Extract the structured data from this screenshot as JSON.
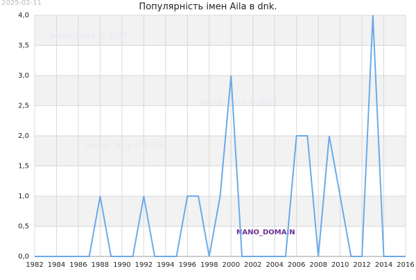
{
  "chart_data": {
    "type": "line",
    "title": "Популярність імен Aila в dnk.",
    "date_stamp": "2025-02-11",
    "watermark": "Імена Світу © 2025",
    "badge": "NANO_DOMAIN",
    "x": [
      1982,
      1983,
      1984,
      1985,
      1986,
      1987,
      1988,
      1989,
      1990,
      1991,
      1992,
      1993,
      1994,
      1995,
      1996,
      1997,
      1998,
      1999,
      2000,
      2001,
      2002,
      2003,
      2004,
      2005,
      2006,
      2007,
      2008,
      2009,
      2010,
      2011,
      2012,
      2013,
      2014,
      2015,
      2016
    ],
    "series": [
      {
        "color": "#6aaae8",
        "values": [
          0,
          0,
          0,
          0,
          0,
          0,
          1,
          0,
          0,
          0,
          1,
          0,
          0,
          0,
          1,
          1,
          0,
          1,
          3,
          0,
          0,
          0,
          0,
          0,
          2,
          2,
          0,
          2,
          1,
          0,
          0,
          4,
          0,
          0,
          0
        ]
      }
    ],
    "xlim": [
      1982,
      2016
    ],
    "xticks": [
      1982,
      1984,
      1986,
      1988,
      1990,
      1992,
      1994,
      1996,
      1998,
      2000,
      2002,
      2004,
      2006,
      2008,
      2010,
      2012,
      2014,
      2016
    ],
    "ylim": [
      0,
      4
    ],
    "yticks": [
      {
        "value": 0,
        "label": "0,0"
      },
      {
        "value": 0.5,
        "label": "0,5"
      },
      {
        "value": 1,
        "label": "1,0"
      },
      {
        "value": 1.5,
        "label": "1,5"
      },
      {
        "value": 2,
        "label": "2,0"
      },
      {
        "value": 2.5,
        "label": "2,5"
      },
      {
        "value": 3,
        "label": "3,0"
      },
      {
        "value": 3.5,
        "label": "3,5"
      },
      {
        "value": 4,
        "label": "4,0"
      }
    ],
    "grid": true
  }
}
